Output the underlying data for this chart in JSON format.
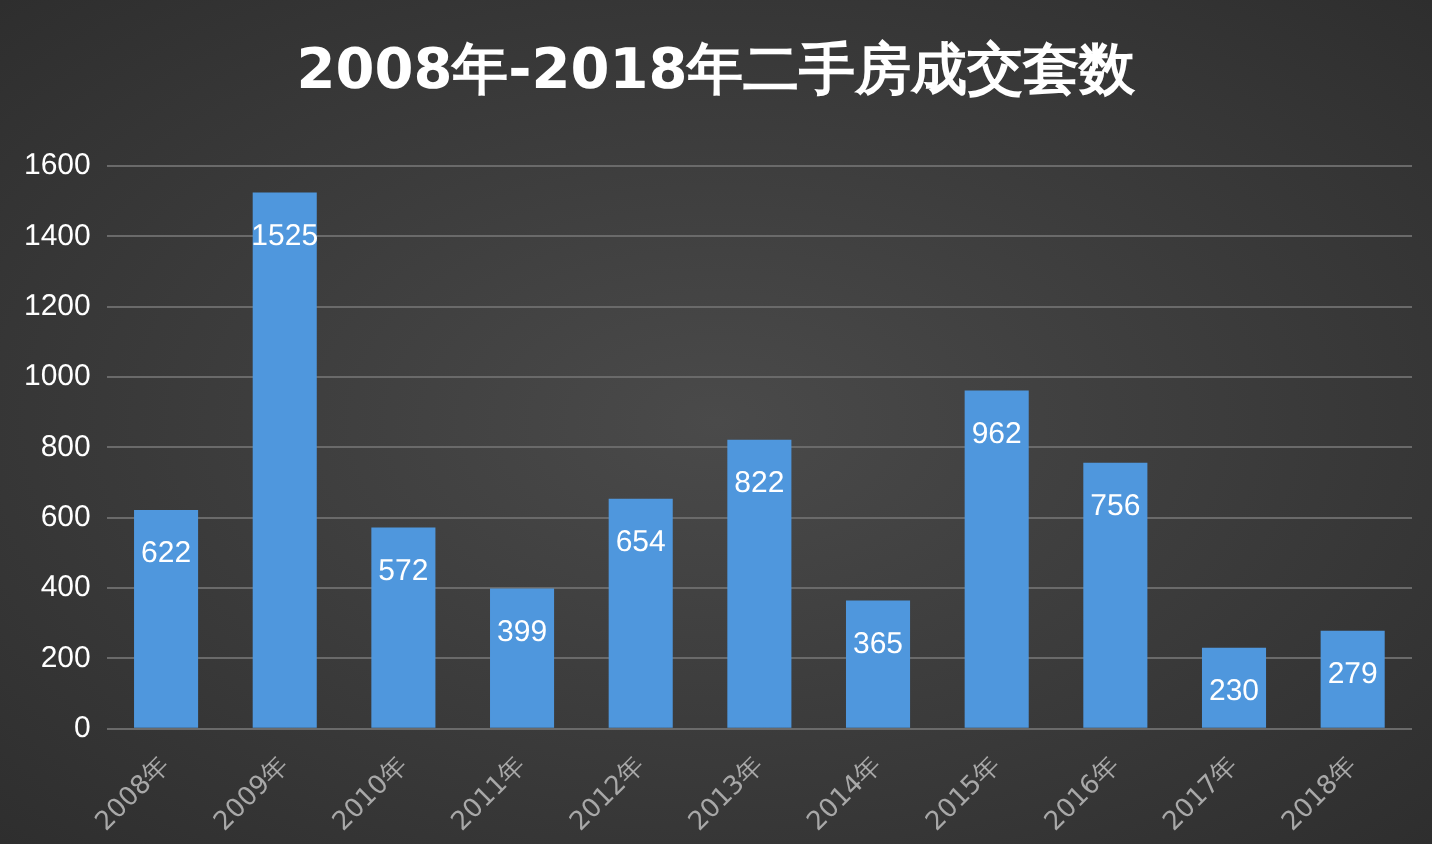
{
  "chart_data": {
    "type": "bar",
    "title": "2008年-2018年二手房成交套数",
    "categories": [
      "2008年",
      "2009年",
      "2010年",
      "2011年",
      "2012年",
      "2013年",
      "2014年",
      "2015年",
      "2016年",
      "2017年",
      "2018年"
    ],
    "values": [
      622,
      1525,
      572,
      399,
      654,
      822,
      365,
      962,
      756,
      230,
      279
    ],
    "color": "#4f97dd",
    "data_labels": true,
    "grid": "y",
    "legend": false,
    "ylim": [
      0,
      1600
    ],
    "yticks": [
      0,
      200,
      400,
      600,
      800,
      1000,
      1200,
      1400,
      1600
    ]
  }
}
